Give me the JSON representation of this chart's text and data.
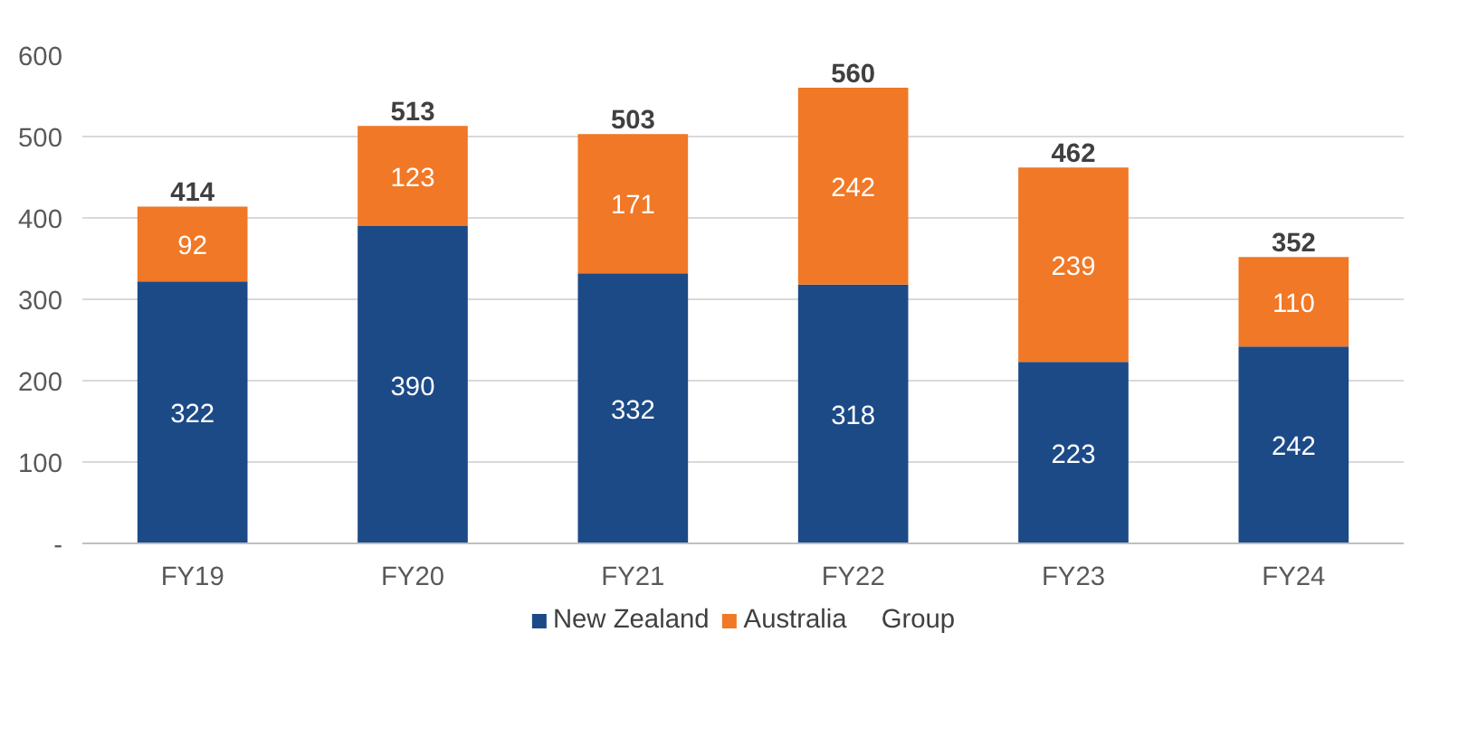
{
  "chart_data": {
    "type": "bar",
    "stacked": true,
    "categories": [
      "FY19",
      "FY20",
      "FY21",
      "FY22",
      "FY23",
      "FY24"
    ],
    "series": [
      {
        "name": "New Zealand",
        "color": "#1c4a87",
        "values": [
          322,
          390,
          332,
          318,
          223,
          242
        ]
      },
      {
        "name": "Australia",
        "color": "#f07826",
        "values": [
          92,
          123,
          171,
          242,
          239,
          110
        ]
      }
    ],
    "totals": [
      "414",
      "513",
      "503",
      "560",
      "462",
      "352"
    ],
    "annotations": [
      "Group"
    ],
    "ylim": [
      0,
      600
    ],
    "yticks": [
      {
        "value": 0,
        "label": "-"
      },
      100,
      200,
      300,
      400,
      500,
      600
    ],
    "grid": "y",
    "legend": "bottom",
    "data_labels": true
  }
}
